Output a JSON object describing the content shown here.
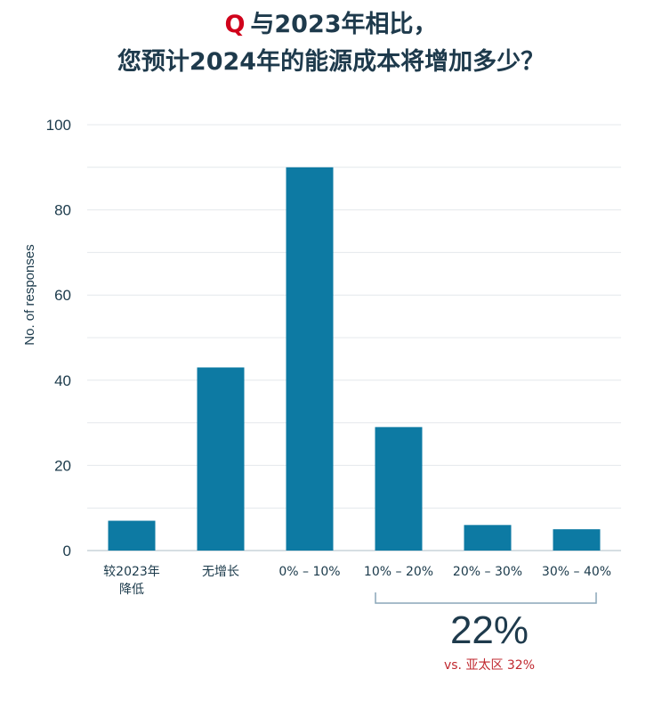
{
  "title": {
    "q_mark": "Q",
    "line1": "与2023年相比，",
    "line2": "您预计2024年的能源成本将增加多少？"
  },
  "colors": {
    "bar": "#0d7aa3",
    "title": "#1e3a4c",
    "highlight": "#c0282f",
    "axis_text": "#1b3a4b",
    "grid": "#e4e8ec",
    "bracket": "#8aa6b8"
  },
  "chart_data": {
    "type": "bar",
    "ylabel": "No. of responses",
    "ylim": [
      0,
      100
    ],
    "yticks": [
      0,
      20,
      40,
      60,
      80,
      100
    ],
    "grid": true,
    "categories": [
      [
        "较2023年",
        "降低"
      ],
      [
        "无增长"
      ],
      [
        "0% – 10%"
      ],
      [
        "10% – 20%"
      ],
      [
        "20% – 30%"
      ],
      [
        "30% – 40%"
      ]
    ],
    "values": [
      7,
      43,
      90,
      29,
      6,
      5
    ]
  },
  "callout": {
    "value": "22%",
    "comparison": "vs. 亚太区 32%"
  }
}
